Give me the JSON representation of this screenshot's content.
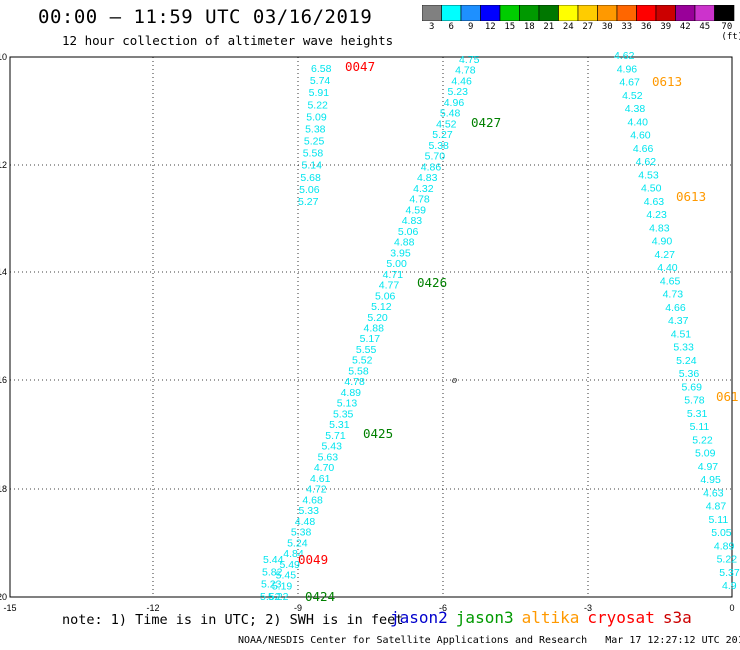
{
  "header": {
    "title": "00:00 – 11:59 UTC 03/16/2019",
    "subtitle": "12 hour collection of altimeter wave heights"
  },
  "colorbar": {
    "labels": [
      "3",
      "6",
      "9",
      "12",
      "15",
      "18",
      "21",
      "24",
      "27",
      "30",
      "33",
      "36",
      "39",
      "42",
      "45",
      "70 (ft)"
    ],
    "colors": [
      "#808080",
      "#00ffff",
      "#1e90ff",
      "#0000ff",
      "#00cc00",
      "#009900",
      "#007700",
      "#ffff00",
      "#ffcc00",
      "#ff9900",
      "#ff6600",
      "#ff0000",
      "#cc0000",
      "#990099",
      "#cc33cc",
      "#000000"
    ]
  },
  "axes": {
    "y_ticks": [
      "-10",
      "-12",
      "-14",
      "-16",
      "-18",
      "-20"
    ],
    "x_ticks": [
      "-15",
      "-12",
      "-9",
      "-6",
      "-3",
      "0"
    ]
  },
  "track1": [
    "6.58",
    "5.74",
    "5.91",
    "5.22",
    "5.09",
    "5.38",
    "5.25",
    "5.58",
    "5.14",
    "5.68",
    "5.06",
    "5.27"
  ],
  "track2": [
    "4.75",
    "4.78",
    "4.46",
    "5.23",
    "4.96",
    "5.48",
    "4.52",
    "5.27",
    "5.38",
    "5.70",
    "4.86",
    "4.83",
    "4.32",
    "4.78",
    "4.59",
    "4.83",
    "5.06",
    "4.88",
    "3.95",
    "5.00",
    "4.71",
    "4.77",
    "5.06",
    "5.12",
    "5.20",
    "4.88",
    "5.17",
    "5.55",
    "5.52",
    "5.58",
    "4.78",
    "4.89",
    "5.13",
    "5.35",
    "5.31",
    "5.71",
    "5.43",
    "5.63",
    "4.70",
    "4.61",
    "4.72",
    "4.68",
    "5.33",
    "4.48",
    "5.38",
    "5.24",
    "4.84",
    "5.49",
    "5.45",
    "5.19",
    "5.22"
  ],
  "track2_tail": [
    "5.44",
    "5.82",
    "5.23",
    "5.52"
  ],
  "track3": [
    "4.62",
    "4.96",
    "4.67",
    "4.52",
    "4.38",
    "4.40",
    "4.60",
    "4.66",
    "4.62",
    "4.53",
    "4.50",
    "4.63",
    "4.23",
    "4.83",
    "4.90",
    "4.27",
    "4.40",
    "4.65",
    "4.73",
    "4.66",
    "4.37",
    "4.51",
    "5.33",
    "5.24",
    "5.36",
    "5.69",
    "5.78",
    "5.31",
    "5.11",
    "5.22",
    "5.09",
    "4.97",
    "4.95",
    "4.63",
    "4.87",
    "5.11",
    "5.05",
    "4.89",
    "5.22",
    "5.37",
    "4.9"
  ],
  "pass_times": [
    {
      "label": "0047",
      "color": "#ff0000"
    },
    {
      "label": "0427",
      "color": "#008000"
    },
    {
      "label": "0426",
      "color": "#008000"
    },
    {
      "label": "0425",
      "color": "#008000"
    },
    {
      "label": "0049",
      "color": "#ff0000"
    },
    {
      "label": "0424",
      "color": "#008000"
    },
    {
      "label": "0613",
      "color": "#ff9900"
    },
    {
      "label": "0613",
      "color": "#ff9900"
    },
    {
      "label": "061",
      "color": "#ff9900"
    }
  ],
  "land_mark": "o",
  "note": "note: 1) Time is in UTC; 2) SWH is in feet",
  "legend": [
    {
      "label": "jason2",
      "color": "#0000cc"
    },
    {
      "label": "jason3",
      "color": "#009900"
    },
    {
      "label": "altika",
      "color": "#ff9900"
    },
    {
      "label": "cryosat",
      "color": "#ff0000"
    },
    {
      "label": "s3a",
      "color": "#cc0000"
    }
  ],
  "footer": "NOAA/NESDIS Center for Satellite Applications and Research   Mar 17 12:27:12 UTC 2019"
}
